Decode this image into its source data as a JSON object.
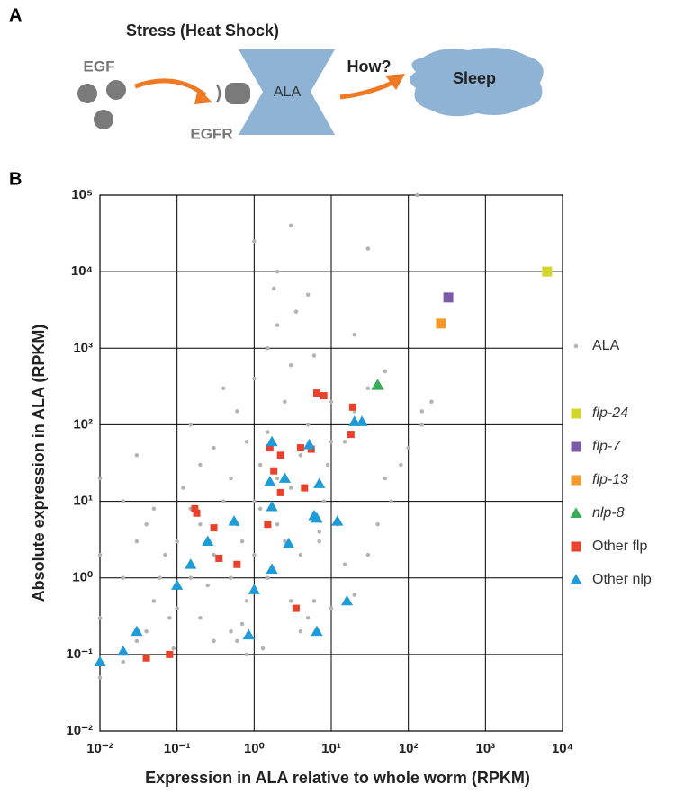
{
  "panel_a": {
    "panel_label": "A",
    "title": "Stress (Heat Shock)",
    "ligand": "EGF",
    "receptor": "EGFR",
    "neuron": "ALA",
    "question": "How?",
    "outcome": "Sleep"
  },
  "chart_data": {
    "type": "scatter",
    "panel_label": "B",
    "x_label": "Expression in ALA relative to whole worm (RPKM)",
    "y_label": "Absolute expression in ALA (RPKM)",
    "log_x": true,
    "log_y": true,
    "grid": true,
    "legend": "right",
    "xlim": [
      0.01,
      10000
    ],
    "ylim": [
      0.01,
      100000
    ],
    "xticks": [
      {
        "value": 0.01,
        "label": "10⁻²"
      },
      {
        "value": 0.1,
        "label": "10⁻¹"
      },
      {
        "value": 1,
        "label": "10⁰"
      },
      {
        "value": 10,
        "label": "10¹"
      },
      {
        "value": 100,
        "label": "10²"
      },
      {
        "value": 1000,
        "label": "10³"
      },
      {
        "value": 10000,
        "label": "10⁴"
      }
    ],
    "yticks": [
      {
        "value": 0.01,
        "label": "10⁻²"
      },
      {
        "value": 0.1,
        "label": "10⁻¹"
      },
      {
        "value": 1,
        "label": "10⁰"
      },
      {
        "value": 10,
        "label": "10¹"
      },
      {
        "value": 100,
        "label": "10²"
      },
      {
        "value": 1000,
        "label": "10³"
      },
      {
        "value": 10000,
        "label": "10⁴"
      },
      {
        "value": 100000,
        "label": "10⁵"
      }
    ],
    "series": [
      {
        "name": "ALA",
        "color": "#b3b3b3",
        "marker": "circle",
        "italic": false,
        "x": [
          0.01,
          0.01,
          0.01,
          0.01,
          0.02,
          0.02,
          0.02,
          0.03,
          0.03,
          0.03,
          0.04,
          0.04,
          0.05,
          0.05,
          0.06,
          0.07,
          0.08,
          0.1,
          0.1,
          0.12,
          0.15,
          0.15,
          0.2,
          0.2,
          0.25,
          0.3,
          0.3,
          0.4,
          0.4,
          0.5,
          0.5,
          0.6,
          0.6,
          0.7,
          0.8,
          0.8,
          1,
          1,
          1,
          1.2,
          1.2,
          1.5,
          1.5,
          1.5,
          2,
          2,
          2,
          2.5,
          2.5,
          3,
          3,
          3,
          4,
          4,
          5,
          5,
          6,
          6,
          7,
          8,
          9,
          10,
          10,
          12,
          15,
          15,
          20,
          20,
          30,
          30,
          40,
          50,
          60,
          80,
          100,
          150,
          200,
          0.3,
          0.5,
          0.8,
          1,
          2,
          3,
          5,
          0.15,
          0.2,
          0.7,
          1.3,
          4,
          7,
          10,
          30,
          20,
          50,
          130,
          150,
          0.09,
          0.6,
          3.5,
          1.8
        ],
        "values": [
          0.05,
          0.3,
          2,
          20,
          0.08,
          1,
          10,
          0.15,
          3,
          40,
          0.2,
          5,
          0.5,
          8,
          1,
          2,
          0.3,
          0.4,
          3,
          15,
          1,
          100,
          5,
          30,
          0.8,
          2,
          50,
          10,
          300,
          1,
          20,
          5,
          150,
          3,
          0.5,
          60,
          2,
          10,
          400,
          30,
          8,
          1,
          80,
          1000,
          5,
          20,
          2000,
          3,
          200,
          0.5,
          15,
          600,
          2,
          40,
          0.3,
          100,
          0.5,
          800,
          3,
          10,
          30,
          0.4,
          200,
          5,
          1.5,
          60,
          0.6,
          1500,
          2,
          300,
          5,
          20,
          10,
          30,
          50,
          100,
          200,
          0.15,
          0.2,
          0.1,
          25000,
          10000,
          40000,
          5000,
          8,
          0.3,
          0.25,
          0.12,
          0.2,
          4,
          60,
          20000,
          150,
          500,
          100000,
          150,
          0.12,
          0.15,
          3000,
          6000
        ]
      },
      {
        "name": "flp-24",
        "color": "#d4d62a",
        "marker": "square",
        "italic": true,
        "x": [
          6300
        ],
        "values": [
          10000
        ]
      },
      {
        "name": "flp-7",
        "color": "#7b5ba8",
        "marker": "square",
        "italic": true,
        "x": [
          330
        ],
        "values": [
          4600
        ]
      },
      {
        "name": "flp-13",
        "color": "#f39a2b",
        "marker": "square",
        "italic": true,
        "x": [
          265
        ],
        "values": [
          2100
        ]
      },
      {
        "name": "nlp-8",
        "color": "#3aab58",
        "marker": "triangle",
        "italic": true,
        "x": [
          40
        ],
        "values": [
          330
        ]
      },
      {
        "name": "Other flp",
        "color": "#e8412c",
        "marker": "square",
        "italic": false,
        "x": [
          6.5,
          8,
          19,
          18,
          5.5,
          4,
          1.6,
          2.2,
          1.8,
          4.5,
          2.2,
          1.5,
          0.17,
          0.18,
          0.3,
          0.35,
          0.6,
          3.5,
          0.04,
          0.08
        ],
        "values": [
          260,
          240,
          170,
          75,
          48,
          50,
          50,
          40,
          25,
          15,
          13,
          5,
          8,
          7,
          4.5,
          1.8,
          1.5,
          0.4,
          0.09,
          0.1
        ]
      },
      {
        "name": "Other nlp",
        "color": "#1f9bd7",
        "marker": "triangle",
        "italic": false,
        "x": [
          0.01,
          0.02,
          0.03,
          0.1,
          0.15,
          0.25,
          0.55,
          1.7,
          1.6,
          1.7,
          2.5,
          5.2,
          7,
          6,
          6.5,
          12,
          2.8,
          1.7,
          1,
          0.85,
          6.5,
          16,
          20,
          25
        ],
        "values": [
          0.08,
          0.11,
          0.2,
          0.8,
          1.5,
          3,
          5.5,
          60,
          18,
          8.5,
          20,
          55,
          17,
          6.5,
          6,
          5.5,
          2.8,
          1.3,
          0.7,
          0.18,
          0.2,
          0.5,
          110,
          110
        ]
      }
    ]
  }
}
